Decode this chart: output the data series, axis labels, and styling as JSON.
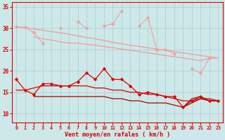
{
  "x": [
    0,
    1,
    2,
    3,
    4,
    5,
    6,
    7,
    8,
    9,
    10,
    11,
    12,
    13,
    14,
    15,
    16,
    17,
    18,
    19,
    20,
    21,
    22,
    23
  ],
  "jagged_pink": [
    30.3,
    30.2,
    29.0,
    26.5,
    null,
    30.0,
    null,
    31.5,
    30.0,
    null,
    30.5,
    31.0,
    34.0,
    null,
    30.5,
    32.5,
    25.0,
    25.0,
    24.0,
    null,
    20.5,
    19.5,
    23.0,
    null
  ],
  "smooth_pink1": [
    30.3,
    30.1,
    29.8,
    29.5,
    29.2,
    28.9,
    28.6,
    28.2,
    27.8,
    27.5,
    27.1,
    26.7,
    26.3,
    26.0,
    25.7,
    25.4,
    25.1,
    24.8,
    24.5,
    24.2,
    23.9,
    23.6,
    23.3,
    23.0
  ],
  "smooth_pink2": [
    null,
    null,
    28.0,
    27.5,
    27.2,
    26.8,
    26.5,
    26.5,
    26.2,
    26.0,
    25.7,
    25.4,
    25.1,
    24.8,
    24.5,
    24.2,
    23.9,
    23.6,
    23.3,
    23.0,
    22.7,
    22.4,
    23.0,
    23.0
  ],
  "jagged_red": [
    18.0,
    15.5,
    14.5,
    17.0,
    17.0,
    16.5,
    16.5,
    17.5,
    19.5,
    18.0,
    20.5,
    18.0,
    18.0,
    16.5,
    14.5,
    15.0,
    14.5,
    14.0,
    14.0,
    11.5,
    13.0,
    14.0,
    13.0,
    13.0
  ],
  "smooth_red1": [
    15.5,
    15.5,
    16.0,
    16.5,
    16.5,
    16.5,
    16.5,
    16.5,
    16.5,
    16.0,
    16.0,
    15.5,
    15.5,
    15.0,
    15.0,
    14.5,
    14.5,
    14.0,
    13.5,
    13.0,
    13.0,
    13.5,
    13.5,
    13.0
  ],
  "smooth_red2": [
    null,
    null,
    14.0,
    14.0,
    14.0,
    14.0,
    14.0,
    14.0,
    14.0,
    14.0,
    14.0,
    13.5,
    13.5,
    13.0,
    13.0,
    12.5,
    12.5,
    12.5,
    12.0,
    11.5,
    13.5,
    14.0,
    13.0,
    13.0
  ],
  "smooth_red3": [
    null,
    null,
    null,
    null,
    null,
    null,
    null,
    null,
    null,
    null,
    null,
    null,
    null,
    null,
    null,
    null,
    null,
    null,
    null,
    11.5,
    12.5,
    13.5,
    13.0,
    13.0
  ],
  "xlabel": "Vent moyen/en rafales ( km/h )",
  "ylim": [
    8,
    36
  ],
  "yticks": [
    10,
    15,
    20,
    25,
    30,
    35
  ],
  "bg_color": "#cce8e8",
  "grid_color": "#b0cccc",
  "color_pink_light": "#f0a0a0",
  "color_red": "#dd0000",
  "color_dark_red": "#aa0000"
}
